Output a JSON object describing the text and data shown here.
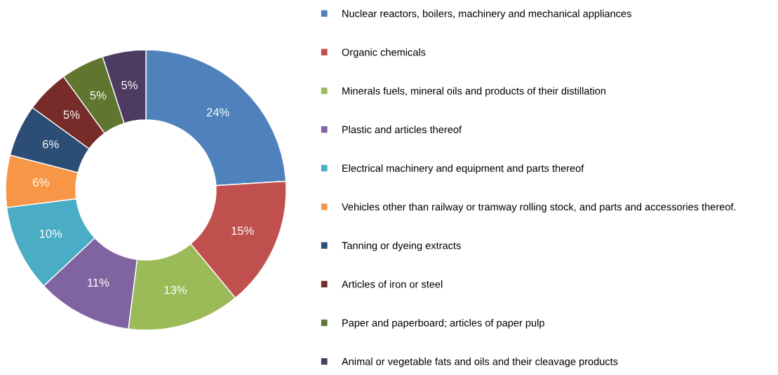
{
  "chart_data": {
    "type": "donut",
    "categories": [
      "Nuclear reactors, boilers, machinery and mechanical appliances",
      "Organic chemicals",
      "Minerals fuels, mineral oils and products of their distillation",
      "Plastic and articles thereof",
      "Electrical machinery and equipment and parts thereof",
      "Vehicles other than railway or tramway rolling stock, and parts and accessories thereof.",
      "Tanning or dyeing extracts",
      "Articles of iron or steel",
      "Paper and paperboard; articles of paper pulp",
      "Animal or vegetable fats and oils and their cleavage products"
    ],
    "values": [
      24,
      15,
      13,
      11,
      10,
      6,
      6,
      5,
      5,
      5
    ],
    "colors": [
      "#4f81bd",
      "#c0504d",
      "#9bbb59",
      "#8064a2",
      "#4bacc6",
      "#f79646",
      "#2c4d75",
      "#772c2a",
      "#5f7530",
      "#4d3b62"
    ],
    "value_labels": [
      "24%",
      "15%",
      "13%",
      "11%",
      "10%",
      "6%",
      "6%",
      "5%",
      "5%",
      "5%"
    ],
    "legend": "right"
  }
}
